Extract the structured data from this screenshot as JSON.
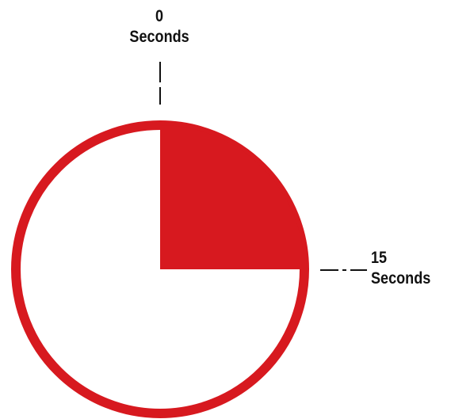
{
  "diagram": {
    "type": "timer-dial",
    "elapsed_fraction": 0.25,
    "colors": {
      "ring": "#d7191f",
      "fill": "#d7191f",
      "face": "#ffffff",
      "ink": "#111111"
    }
  },
  "labels": {
    "top": {
      "value": "0",
      "unit": "Seconds"
    },
    "right": {
      "value": "15",
      "unit": "Seconds"
    }
  }
}
